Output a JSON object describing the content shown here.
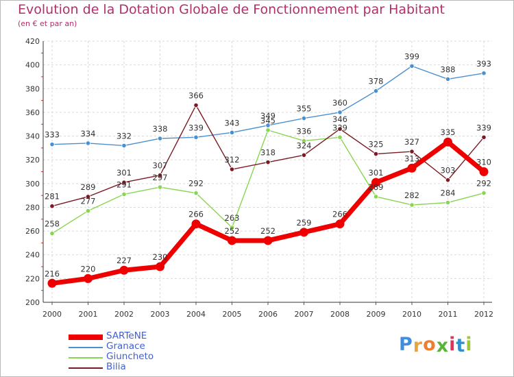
{
  "header": {
    "title": "Evolution de la Dotation Globale de Fonctionnement par Habitant",
    "subtitle": "(en € et par an)"
  },
  "logo": {
    "letters": [
      "P",
      "r",
      "o",
      "x",
      "i",
      "t",
      "i"
    ],
    "colors": [
      "#3f8ee0",
      "#e8a33b",
      "#ee7f2f",
      "#5ab43c",
      "#e0345a",
      "#2f8fd0",
      "#9fc63a"
    ]
  },
  "chart_data": {
    "type": "line",
    "title": "Evolution de la Dotation Globale de Fonctionnement par Habitant",
    "subtitle": "(en € et par an)",
    "xlabel": "",
    "ylabel": "",
    "x": [
      "2000",
      "2001",
      "2002",
      "2003",
      "2004",
      "2005",
      "2006",
      "2007",
      "2008",
      "2009",
      "2010",
      "2011",
      "2012"
    ],
    "ylim": [
      200,
      420
    ],
    "yticks": [
      200,
      220,
      240,
      260,
      280,
      300,
      320,
      340,
      360,
      380,
      400,
      420
    ],
    "grid": true,
    "legend_position": "bottom-left",
    "series": [
      {
        "name": "SARTeNE",
        "color": "#ee0000",
        "highlight": true,
        "values": [
          216,
          220,
          227,
          230,
          266,
          252,
          252,
          259,
          266,
          301,
          313,
          335,
          310
        ]
      },
      {
        "name": "Granace",
        "color": "#4a90d0",
        "highlight": false,
        "values": [
          333,
          334,
          332,
          338,
          339,
          343,
          349,
          355,
          360,
          378,
          399,
          388,
          393
        ]
      },
      {
        "name": "Giuncheto",
        "color": "#88d550",
        "highlight": false,
        "values": [
          258,
          277,
          291,
          297,
          292,
          263,
          345,
          336,
          339,
          289,
          282,
          284,
          292
        ]
      },
      {
        "name": "Bilia",
        "color": "#7a1a22",
        "highlight": false,
        "values": [
          281,
          289,
          301,
          307,
          366,
          312,
          318,
          324,
          346,
          325,
          327,
          303,
          339
        ]
      }
    ]
  }
}
